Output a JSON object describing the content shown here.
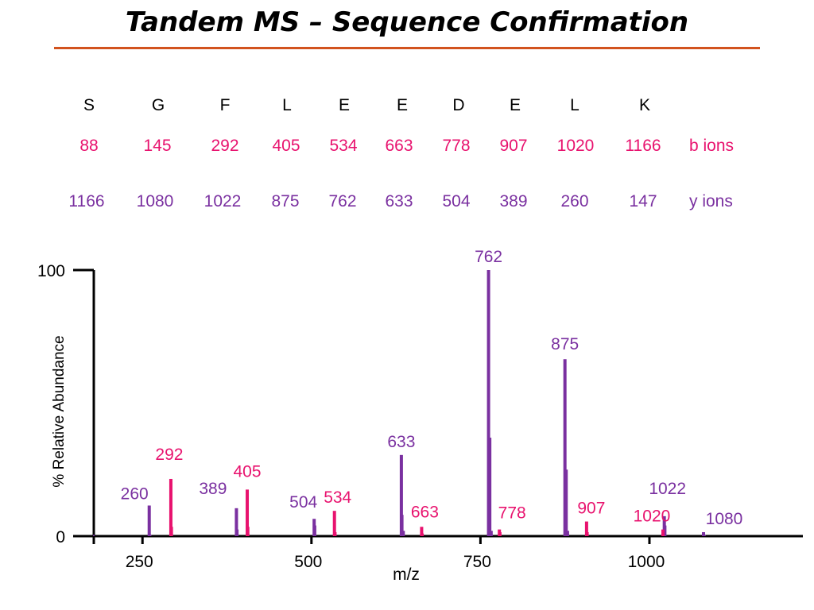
{
  "title": "Tandem MS – Sequence Confirmation",
  "colors": {
    "b_ion": "#e8126e",
    "y_ion": "#7a30a0",
    "rule": "#d2531e",
    "axis": "#000000"
  },
  "sequence": {
    "residues": [
      "S",
      "G",
      "F",
      "L",
      "E",
      "E",
      "D",
      "E",
      "L",
      "K"
    ],
    "b_ions": [
      "88",
      "145",
      "292",
      "405",
      "534",
      "663",
      "778",
      "907",
      "1020",
      "1166"
    ],
    "y_ions": [
      "1166",
      "1080",
      "1022",
      "875",
      "762",
      "633",
      "504",
      "389",
      "260",
      "147"
    ],
    "b_label": "b ions",
    "y_label": "y ions"
  },
  "chart_data": {
    "type": "bar",
    "xlabel": "m/z",
    "ylabel": "% Relative Abundance",
    "xlim": [
      178,
      1227
    ],
    "ylim": [
      0,
      100
    ],
    "xticks": [
      "250",
      "500",
      "750",
      "1000"
    ],
    "xtick_values": [
      250,
      500,
      750,
      1000
    ],
    "yticks": [
      "0",
      "100"
    ],
    "ytick_values": [
      0,
      100
    ],
    "series": [
      {
        "name": "y ions",
        "peaks": [
          {
            "mz": 260,
            "intensity": 11.5,
            "label": "260"
          },
          {
            "mz": 389,
            "intensity": 10.5,
            "label": "389"
          },
          {
            "mz": 504,
            "intensity": 6.5,
            "label": "504"
          },
          {
            "mz": 633,
            "intensity": 30.5,
            "label": "633"
          },
          {
            "mz": 762,
            "intensity": 100,
            "label": "762"
          },
          {
            "mz": 875,
            "intensity": 66.5,
            "label": "875"
          },
          {
            "mz": 1022,
            "intensity": 7.5,
            "label": "1022"
          },
          {
            "mz": 1080,
            "intensity": 1.5,
            "label": "1080"
          }
        ],
        "minor_peaks": [
          {
            "mz": 178,
            "intensity": 0.5
          },
          {
            "mz": 262,
            "intensity": 0.5
          },
          {
            "mz": 391,
            "intensity": 2.5
          },
          {
            "mz": 506,
            "intensity": 4
          },
          {
            "mz": 635,
            "intensity": 8
          },
          {
            "mz": 637,
            "intensity": 2
          },
          {
            "mz": 765,
            "intensity": 37
          },
          {
            "mz": 767,
            "intensity": 2
          },
          {
            "mz": 878,
            "intensity": 25
          },
          {
            "mz": 880,
            "intensity": 2
          },
          {
            "mz": 1024,
            "intensity": 4
          },
          {
            "mz": 1082,
            "intensity": 0.5
          }
        ]
      },
      {
        "name": "b ions",
        "peaks": [
          {
            "mz": 292,
            "intensity": 21.5,
            "label": "292"
          },
          {
            "mz": 405,
            "intensity": 17.5,
            "label": "405"
          },
          {
            "mz": 534,
            "intensity": 9.5,
            "label": "534"
          },
          {
            "mz": 663,
            "intensity": 3.5,
            "label": "663"
          },
          {
            "mz": 778,
            "intensity": 2.5,
            "label": "778"
          },
          {
            "mz": 907,
            "intensity": 5.5,
            "label": "907"
          },
          {
            "mz": 1020,
            "intensity": 2.5,
            "label": "1020"
          }
        ],
        "minor_peaks": [
          {
            "mz": 294,
            "intensity": 3.5
          },
          {
            "mz": 407,
            "intensity": 3.5
          },
          {
            "mz": 536,
            "intensity": 1.5
          },
          {
            "mz": 665,
            "intensity": 1
          },
          {
            "mz": 780,
            "intensity": 1.5
          },
          {
            "mz": 909,
            "intensity": 1.5
          }
        ]
      }
    ]
  }
}
